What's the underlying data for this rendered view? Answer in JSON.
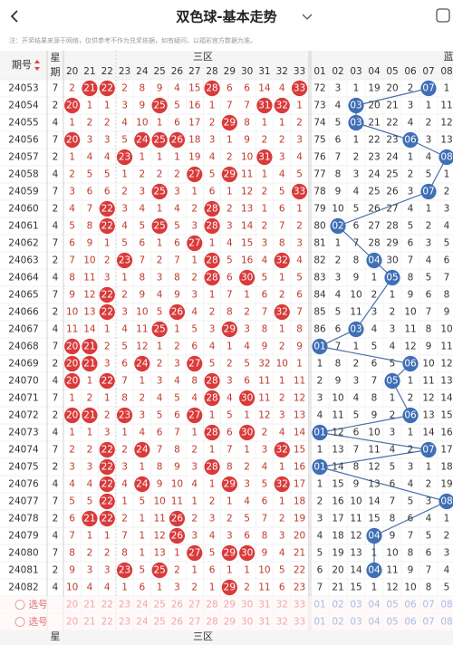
{
  "nav": {
    "title": "双色球-基本走势"
  },
  "notice": "注：开奖结果来源于网络，仅供参考不作为兑奖依据，如有疑问，以福彩官方数据为准。",
  "table": {
    "issue_header": "期号",
    "week_top": "星",
    "week_bottom": "期",
    "red_zone": "三区",
    "blue_zone": "蓝",
    "red_columns": [
      "20",
      "21",
      "22",
      "23",
      "24",
      "25",
      "26",
      "27",
      "28",
      "29",
      "30",
      "31",
      "32",
      "33"
    ],
    "blue_columns": [
      "01",
      "02",
      "03",
      "04",
      "05",
      "06",
      "07",
      "08"
    ],
    "rows": [
      {
        "issue": "24053",
        "week": "7",
        "red": [
          "2",
          "21",
          "22",
          "2",
          "8",
          "9",
          "4",
          "15",
          "28",
          "6",
          "6",
          "14",
          "4",
          "33"
        ],
        "blue": [
          "72",
          "3",
          "1",
          "19",
          "20",
          "2",
          "07",
          "1"
        ]
      },
      {
        "issue": "24054",
        "week": "2",
        "red": [
          "20",
          "1",
          "1",
          "3",
          "9",
          "25",
          "5",
          "16",
          "1",
          "7",
          "7",
          "31",
          "32",
          "1"
        ],
        "blue": [
          "73",
          "4",
          "03",
          "20",
          "21",
          "3",
          "1",
          "11"
        ]
      },
      {
        "issue": "24055",
        "week": "4",
        "red": [
          "1",
          "2",
          "2",
          "4",
          "10",
          "1",
          "6",
          "17",
          "2",
          "29",
          "8",
          "1",
          "1",
          "2"
        ],
        "blue": [
          "74",
          "5",
          "03",
          "21",
          "22",
          "4",
          "2",
          "12"
        ]
      },
      {
        "issue": "24056",
        "week": "7",
        "red": [
          "20",
          "3",
          "3",
          "5",
          "24",
          "25",
          "26",
          "18",
          "3",
          "1",
          "9",
          "2",
          "2",
          "3"
        ],
        "blue": [
          "75",
          "6",
          "1",
          "22",
          "23",
          "06",
          "3",
          "13"
        ]
      },
      {
        "issue": "24057",
        "week": "2",
        "red": [
          "1",
          "4",
          "4",
          "23",
          "1",
          "1",
          "1",
          "19",
          "4",
          "2",
          "10",
          "31",
          "3",
          "4"
        ],
        "blue": [
          "76",
          "7",
          "2",
          "23",
          "24",
          "1",
          "4",
          "08"
        ]
      },
      {
        "issue": "24058",
        "week": "4",
        "red": [
          "2",
          "5",
          "5",
          "1",
          "2",
          "2",
          "2",
          "27",
          "5",
          "29",
          "11",
          "1",
          "4",
          "5"
        ],
        "blue": [
          "77",
          "8",
          "3",
          "24",
          "25",
          "2",
          "5",
          "1"
        ]
      },
      {
        "issue": "24059",
        "week": "7",
        "red": [
          "3",
          "6",
          "6",
          "2",
          "3",
          "25",
          "3",
          "1",
          "6",
          "1",
          "12",
          "2",
          "5",
          "33"
        ],
        "blue": [
          "78",
          "9",
          "4",
          "25",
          "26",
          "3",
          "07",
          "2"
        ]
      },
      {
        "issue": "24060",
        "week": "2",
        "red": [
          "4",
          "7",
          "22",
          "3",
          "4",
          "1",
          "4",
          "2",
          "28",
          "2",
          "13",
          "1",
          "6",
          "1"
        ],
        "blue": [
          "79",
          "10",
          "5",
          "26",
          "27",
          "4",
          "1",
          "3"
        ]
      },
      {
        "issue": "24061",
        "week": "4",
        "red": [
          "5",
          "8",
          "22",
          "4",
          "5",
          "25",
          "5",
          "3",
          "28",
          "3",
          "14",
          "2",
          "7",
          "2"
        ],
        "blue": [
          "80",
          "02",
          "6",
          "27",
          "28",
          "5",
          "2",
          "4"
        ]
      },
      {
        "issue": "24062",
        "week": "7",
        "red": [
          "6",
          "9",
          "1",
          "5",
          "6",
          "1",
          "6",
          "27",
          "1",
          "4",
          "15",
          "3",
          "8",
          "3"
        ],
        "blue": [
          "81",
          "1",
          "7",
          "28",
          "29",
          "6",
          "3",
          "5"
        ]
      },
      {
        "issue": "24063",
        "week": "2",
        "red": [
          "7",
          "10",
          "2",
          "23",
          "7",
          "2",
          "7",
          "1",
          "28",
          "5",
          "16",
          "4",
          "32",
          "4"
        ],
        "blue": [
          "82",
          "2",
          "8",
          "04",
          "30",
          "7",
          "4",
          "6"
        ]
      },
      {
        "issue": "24064",
        "week": "4",
        "red": [
          "8",
          "11",
          "3",
          "1",
          "8",
          "3",
          "8",
          "2",
          "28",
          "6",
          "30",
          "5",
          "1",
          "5"
        ],
        "blue": [
          "83",
          "3",
          "9",
          "1",
          "05",
          "8",
          "5",
          "7"
        ]
      },
      {
        "issue": "24065",
        "week": "7",
        "red": [
          "9",
          "12",
          "22",
          "2",
          "9",
          "4",
          "9",
          "3",
          "1",
          "7",
          "1",
          "6",
          "2",
          "6"
        ],
        "blue": [
          "84",
          "4",
          "10",
          "2",
          "1",
          "9",
          "6",
          "8"
        ]
      },
      {
        "issue": "24066",
        "week": "2",
        "red": [
          "10",
          "13",
          "22",
          "3",
          "10",
          "5",
          "26",
          "4",
          "2",
          "8",
          "2",
          "7",
          "32",
          "7"
        ],
        "blue": [
          "85",
          "5",
          "11",
          "3",
          "2",
          "10",
          "7",
          "9"
        ]
      },
      {
        "issue": "24067",
        "week": "4",
        "red": [
          "11",
          "14",
          "1",
          "4",
          "11",
          "25",
          "1",
          "5",
          "3",
          "29",
          "3",
          "8",
          "1",
          "8"
        ],
        "blue": [
          "86",
          "6",
          "03",
          "4",
          "3",
          "11",
          "8",
          "10"
        ]
      },
      {
        "issue": "24068",
        "week": "7",
        "red": [
          "20",
          "21",
          "2",
          "5",
          "12",
          "1",
          "2",
          "6",
          "4",
          "1",
          "4",
          "9",
          "2",
          "9"
        ],
        "blue": [
          "01",
          "7",
          "1",
          "5",
          "4",
          "12",
          "9",
          "11"
        ]
      },
      {
        "issue": "24069",
        "week": "2",
        "red": [
          "20",
          "21",
          "3",
          "6",
          "24",
          "2",
          "3",
          "27",
          "5",
          "2",
          "5",
          "32",
          "10",
          "1"
        ],
        "blue": [
          "1",
          "8",
          "2",
          "6",
          "5",
          "06",
          "10",
          "12"
        ]
      },
      {
        "issue": "24070",
        "week": "4",
        "red": [
          "20",
          "1",
          "22",
          "7",
          "1",
          "3",
          "4",
          "8",
          "28",
          "3",
          "6",
          "11",
          "1",
          "11"
        ],
        "blue": [
          "2",
          "9",
          "3",
          "7",
          "05",
          "1",
          "11",
          "13"
        ]
      },
      {
        "issue": "24071",
        "week": "7",
        "red": [
          "1",
          "2",
          "1",
          "8",
          "2",
          "4",
          "5",
          "4",
          "28",
          "4",
          "30",
          "11",
          "2",
          "12"
        ],
        "blue": [
          "3",
          "10",
          "4",
          "8",
          "1",
          "2",
          "12",
          "14"
        ]
      },
      {
        "issue": "24072",
        "week": "2",
        "red": [
          "20",
          "21",
          "2",
          "23",
          "3",
          "5",
          "6",
          "27",
          "1",
          "5",
          "1",
          "12",
          "3",
          "13"
        ],
        "blue": [
          "4",
          "11",
          "5",
          "9",
          "2",
          "06",
          "13",
          "15"
        ]
      },
      {
        "issue": "24073",
        "week": "4",
        "red": [
          "1",
          "1",
          "3",
          "1",
          "4",
          "6",
          "7",
          "1",
          "28",
          "6",
          "30",
          "2",
          "4",
          "14"
        ],
        "blue": [
          "01",
          "12",
          "6",
          "10",
          "3",
          "1",
          "14",
          "16"
        ]
      },
      {
        "issue": "24074",
        "week": "7",
        "red": [
          "2",
          "2",
          "22",
          "2",
          "24",
          "7",
          "8",
          "2",
          "1",
          "7",
          "1",
          "3",
          "32",
          "15"
        ],
        "blue": [
          "1",
          "13",
          "7",
          "11",
          "4",
          "2",
          "07",
          "17"
        ]
      },
      {
        "issue": "24075",
        "week": "2",
        "red": [
          "3",
          "3",
          "22",
          "3",
          "1",
          "8",
          "9",
          "3",
          "28",
          "8",
          "2",
          "4",
          "1",
          "16"
        ],
        "blue": [
          "01",
          "14",
          "8",
          "12",
          "5",
          "3",
          "1",
          "18"
        ]
      },
      {
        "issue": "24076",
        "week": "4",
        "red": [
          "4",
          "4",
          "22",
          "4",
          "24",
          "9",
          "10",
          "4",
          "1",
          "29",
          "3",
          "5",
          "32",
          "17"
        ],
        "blue": [
          "1",
          "15",
          "9",
          "13",
          "6",
          "4",
          "2",
          "19"
        ]
      },
      {
        "issue": "24077",
        "week": "7",
        "red": [
          "5",
          "5",
          "22",
          "1",
          "5",
          "10",
          "11",
          "1",
          "2",
          "1",
          "4",
          "6",
          "1",
          "18"
        ],
        "blue": [
          "2",
          "16",
          "10",
          "14",
          "7",
          "5",
          "3",
          "08"
        ]
      },
      {
        "issue": "24078",
        "week": "2",
        "red": [
          "6",
          "21",
          "22",
          "2",
          "1",
          "11",
          "26",
          "2",
          "3",
          "2",
          "5",
          "7",
          "2",
          "19"
        ],
        "blue": [
          "3",
          "17",
          "11",
          "15",
          "8",
          "6",
          "4",
          "1"
        ]
      },
      {
        "issue": "24079",
        "week": "4",
        "red": [
          "7",
          "1",
          "1",
          "7",
          "1",
          "12",
          "26",
          "3",
          "4",
          "3",
          "6",
          "8",
          "3",
          "20"
        ],
        "blue": [
          "4",
          "18",
          "12",
          "04",
          "9",
          "7",
          "5",
          "2"
        ]
      },
      {
        "issue": "24080",
        "week": "7",
        "red": [
          "8",
          "2",
          "2",
          "8",
          "1",
          "13",
          "1",
          "27",
          "5",
          "29",
          "30",
          "9",
          "4",
          "21"
        ],
        "blue": [
          "5",
          "19",
          "13",
          "1",
          "10",
          "8",
          "6",
          "3"
        ]
      },
      {
        "issue": "24081",
        "week": "2",
        "red": [
          "9",
          "3",
          "3",
          "23",
          "5",
          "25",
          "2",
          "1",
          "6",
          "1",
          "1",
          "10",
          "5",
          "22"
        ],
        "blue": [
          "6",
          "20",
          "14",
          "04",
          "11",
          "9",
          "7",
          "4"
        ]
      },
      {
        "issue": "24082",
        "week": "4",
        "red": [
          "10",
          "4",
          "4",
          "1",
          "6",
          "1",
          "3",
          "2",
          "1",
          "29",
          "2",
          "11",
          "6",
          "23"
        ],
        "blue": [
          "7",
          "21",
          "15",
          "1",
          "12",
          "10",
          "8",
          "5"
        ]
      }
    ],
    "select_label": "选号"
  }
}
